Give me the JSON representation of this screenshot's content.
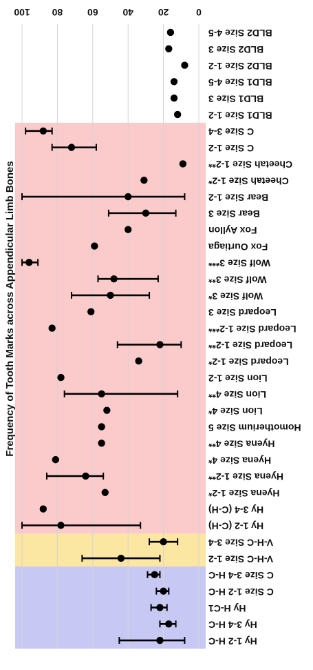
{
  "chart_data": {
    "type": "scatter",
    "title": "Frequency of Tooth Marks across Appendicular Limb Bones",
    "xlabel": "",
    "ylabel": "",
    "xlim": [
      0,
      100
    ],
    "x_ticks": [
      "0",
      "20",
      "40",
      "60",
      "80",
      "100"
    ],
    "grid": true,
    "display_rotation": 180,
    "bands": [
      {
        "name": "blue",
        "color": "#c8c8f5",
        "from": "Hy 1-2 H-C",
        "to": "C Size 3-4 H-C"
      },
      {
        "name": "yellow",
        "color": "#fbe6a2",
        "from": "V-H-C Size 1-2",
        "to": "V-H-C Size 3-4"
      },
      {
        "name": "red",
        "color": "#fbcaca",
        "from": "Hy 1-2 (C-H)",
        "to": "C Size 3-4"
      }
    ],
    "categories": [
      "Hy 1-2 H-C",
      "Hy 3-4 H-C",
      "Hy H-C1",
      "C Size 1-2 H-C",
      "C Size 3-4 H-C",
      "V-H-C Size 1-2",
      "V-H-C Size 3-4",
      "Hy 1-2 (C-H)",
      "Hy 3-4 (C-H)",
      "Hyena Size 1-2*",
      "Hyena Size 1-2**",
      "Hyena Size 4*",
      "Hyena Size 4**",
      "Homotherium Size 5",
      "Lion Size 4*",
      "Lion Size 4**",
      "Lion Size 1-2",
      "Leopard Size 1-2*",
      "Leopard Size 1-2**",
      "Leopard Size 1-2***",
      "Leopard Size 3",
      "Wolf Size 3*",
      "Wolf Size 3**",
      "Wolf Size 3***",
      "Fox Ourtiaga",
      "Fox Ayllon",
      "Bear Size 3",
      "Bear Size 1-2",
      "Cheetah Size 1-2*",
      "Cheetah Size 1-2**",
      "C Size 1-2",
      "C Size 3-4",
      "BLD1 Size 1-2",
      "BLD1 Size 3",
      "BLD1 Size 4-5",
      "BLD2 Size 1-2",
      "BLD2 Size 3",
      "BLD2 Size 4-5"
    ],
    "values": [
      22,
      17,
      22,
      20,
      25,
      44,
      20,
      78,
      88,
      53,
      64,
      81,
      55,
      55,
      52,
      55,
      78,
      34,
      22,
      83,
      61,
      50,
      48,
      96,
      59,
      40,
      30,
      40,
      31,
      9,
      72,
      88,
      12,
      14,
      14,
      8,
      17,
      16
    ],
    "error_low": [
      8,
      13,
      18,
      17,
      22,
      22,
      12,
      33,
      null,
      null,
      54,
      null,
      null,
      null,
      null,
      12,
      null,
      null,
      10,
      null,
      null,
      28,
      23,
      91,
      null,
      null,
      13,
      8,
      null,
      null,
      58,
      83,
      null,
      null,
      null,
      null,
      null,
      null
    ],
    "error_high": [
      45,
      22,
      27,
      24,
      29,
      66,
      28,
      100,
      98,
      null,
      86,
      null,
      null,
      null,
      null,
      76,
      null,
      null,
      46,
      null,
      null,
      72,
      57,
      100,
      null,
      null,
      51,
      100,
      null,
      null,
      83,
      98,
      null,
      null,
      null,
      null,
      null,
      null
    ]
  }
}
